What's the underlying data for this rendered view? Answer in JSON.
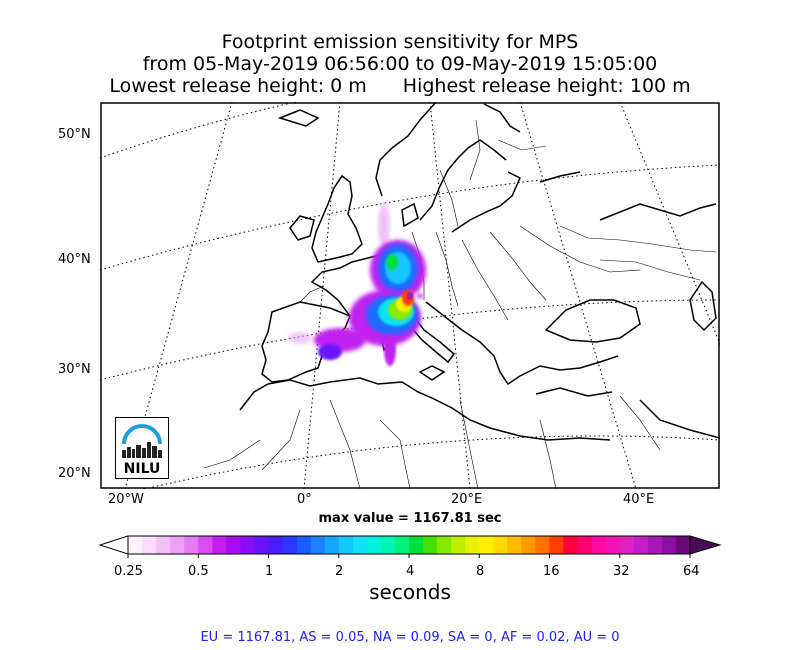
{
  "chart_data": {
    "type": "heatmap",
    "title": [
      "Footprint emission sensitivity for MPS",
      "from 05-May-2019 06:56:00 to 09-May-2019 15:05:00",
      "Lowest release height: 0 m",
      "Highest release height: 100 m"
    ],
    "lat_labels": [
      "50°N",
      "40°N",
      "30°N",
      "20°N"
    ],
    "lon_labels": [
      "20°W",
      "0°",
      "20°E",
      "40°E"
    ],
    "max_value_label": "max value = 1167.81 sec",
    "colorbar": {
      "ticks": [
        "0.25",
        "0.5",
        "1",
        "2",
        "4",
        "8",
        "16",
        "32",
        "64"
      ],
      "label": "seconds",
      "colors": [
        "#fff2ff",
        "#ffdcff",
        "#f5c0fa",
        "#eea0f6",
        "#e57cf2",
        "#d94cf0",
        "#c51ff0",
        "#a80cf0",
        "#8a0df5",
        "#6a13fa",
        "#4a1cff",
        "#2d36ff",
        "#1a5cff",
        "#1c82ff",
        "#17a6ff",
        "#14c7ff",
        "#10e2f6",
        "#00f1e0",
        "#00f5b5",
        "#00f07a",
        "#00e03c",
        "#44e000",
        "#86ea00",
        "#bcef00",
        "#e5f200",
        "#fff000",
        "#ffd900",
        "#ffbb00",
        "#ff9900",
        "#ff7000",
        "#ff3e00",
        "#ff0040",
        "#ff0070",
        "#ff0aa0",
        "#f513b8",
        "#de20c5",
        "#c41ec8",
        "#a818b8",
        "#8c10a0",
        "#6a0878"
      ]
    }
  },
  "summary": "EU = 1167.81,  AS = 0.05,  NA = 0.09,  SA = 0,  AF = 0.02,  AU = 0",
  "logo": {
    "text": "NILU",
    "accent": "#1aa0e0"
  }
}
